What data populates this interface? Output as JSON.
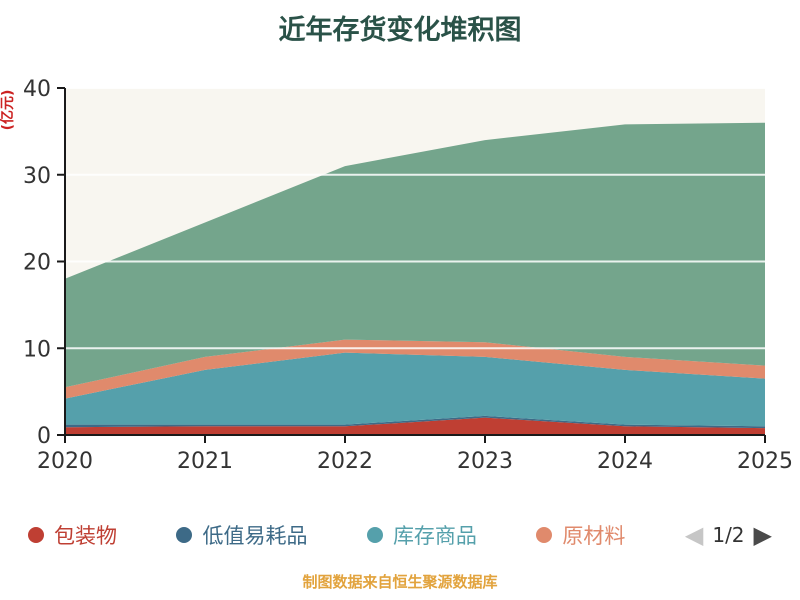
{
  "title": "近年存货变化堆积图",
  "y_axis": {
    "label": "(亿元)",
    "label_color": "#cc2222",
    "ticks": [
      0,
      10,
      20,
      30,
      40
    ],
    "tick_color": "#333333"
  },
  "x_axis": {
    "ticks": [
      "2020",
      "2021",
      "2022",
      "2023",
      "2024",
      "2025"
    ],
    "tick_color": "#333333"
  },
  "legend": {
    "items": [
      {
        "label": "包装物",
        "color": "#bf3f33"
      },
      {
        "label": "低值易耗品",
        "color": "#3d6a87"
      },
      {
        "label": "库存商品",
        "color": "#55a0ab"
      },
      {
        "label": "原材料",
        "color": "#e08a6c"
      }
    ],
    "pager": {
      "text": "1/2",
      "prev_color": "#c6c6c6",
      "next_color": "#4a4a4a"
    }
  },
  "footer": {
    "text": "制图数据来自恒生聚源数据库",
    "color": "#e2a33d"
  },
  "chart_data": {
    "type": "area",
    "stacked": true,
    "title": "近年存货变化堆积图",
    "xlabel": "",
    "ylabel": "(亿元)",
    "ylim": [
      0,
      40
    ],
    "grid": true,
    "legend_position": "bottom",
    "x": [
      2020,
      2021,
      2022,
      2023,
      2024,
      2025
    ],
    "series": [
      {
        "name": "包装物",
        "color": "#bf3f33",
        "values": [
          0.9,
          1.0,
          1.0,
          2.0,
          1.0,
          0.8
        ]
      },
      {
        "name": "低值易耗品",
        "color": "#3d6a87",
        "values": [
          0.3,
          0.2,
          0.2,
          0.2,
          0.2,
          0.2
        ]
      },
      {
        "name": "库存商品",
        "color": "#55a0ab",
        "values": [
          3.0,
          6.3,
          8.3,
          6.8,
          6.3,
          5.5
        ]
      },
      {
        "name": "原材料",
        "color": "#e08a6c",
        "values": [
          1.3,
          1.5,
          1.5,
          1.7,
          1.5,
          1.5
        ]
      },
      {
        "name": "",
        "color": "#74a58c",
        "values": [
          12.5,
          15.5,
          20.0,
          23.3,
          26.8,
          28.0
        ]
      }
    ]
  }
}
